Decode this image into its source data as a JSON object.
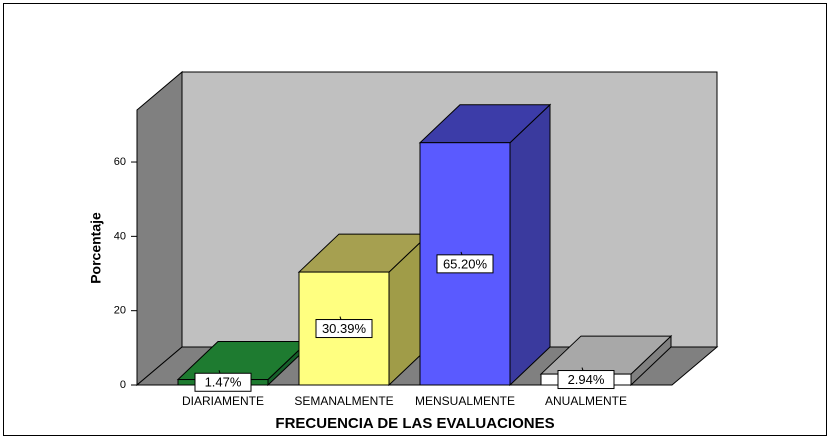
{
  "chart_data": {
    "type": "bar3d",
    "x_label": "FRECUENCIA DE LAS EVALUACIONES",
    "y_label": "Porcentaje",
    "categories": [
      "DIARIAMENTE",
      "SEMANALMENTE",
      "MENSUALMENTE",
      "ANUALMENTE"
    ],
    "values": [
      1.47,
      30.39,
      65.2,
      2.94
    ],
    "value_labels": [
      "1.47%",
      "30.39%",
      "65.20%",
      "2.94%"
    ],
    "colors": [
      "#1e7b30",
      "#ffff80",
      "#5a5aff",
      "#ffffff"
    ],
    "top_colors": [
      "#1e7b30",
      "#a6a050",
      "#3c3ca8",
      "#a8a8a8"
    ],
    "side_colors": [
      "#16602a",
      "#a09c48",
      "#3a3a9e",
      "#808080"
    ],
    "ylim": [
      0,
      74
    ],
    "yticks": [
      0,
      20,
      40,
      60
    ]
  }
}
